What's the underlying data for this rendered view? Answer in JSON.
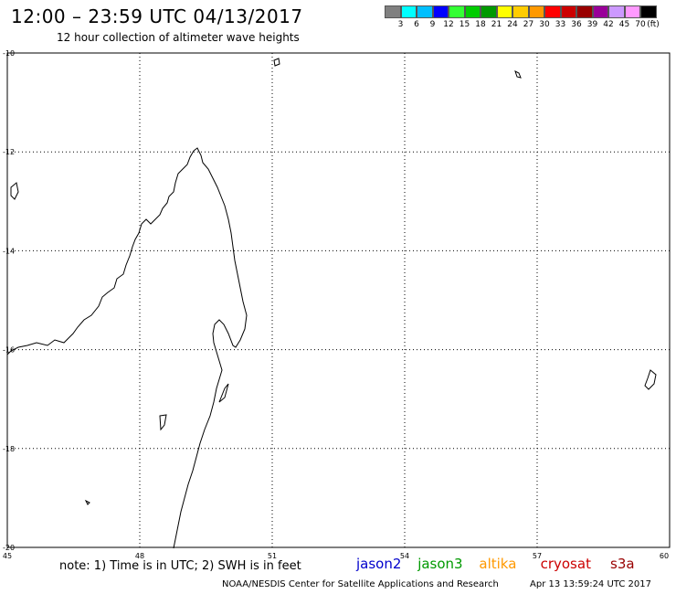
{
  "header": {
    "title": "12:00 – 23:59 UTC 04/13/2017",
    "subtitle": "12 hour collection of altimeter wave heights"
  },
  "colorbar": {
    "colors": [
      "#808080",
      "#00ffff",
      "#00bfff",
      "#0000ff",
      "#33ff33",
      "#00cc00",
      "#009900",
      "#ffff00",
      "#ffcc00",
      "#ff9900",
      "#ff0000",
      "#cc0000",
      "#990000",
      "#990099",
      "#cc99ff",
      "#ff99ff",
      "#000000"
    ],
    "labels": [
      "3",
      "6",
      "9",
      "12",
      "15",
      "18",
      "21",
      "24",
      "27",
      "30",
      "33",
      "36",
      "39",
      "42",
      "45",
      "70"
    ],
    "unit": "(ft)"
  },
  "axes": {
    "lon_ticks": [
      "45",
      "48",
      "51",
      "54",
      "57",
      "60"
    ],
    "lat_ticks": [
      "-10",
      "-12",
      "-14",
      "-16",
      "-18",
      "-20"
    ],
    "lon_range": [
      45,
      60
    ],
    "lat_range": [
      -20,
      -10
    ]
  },
  "footer": {
    "note": "note: 1) Time is in UTC; 2) SWH is in feet",
    "satellites": [
      {
        "name": "jason2",
        "color": "#0000cc"
      },
      {
        "name": "jason3",
        "color": "#009900"
      },
      {
        "name": "altika",
        "color": "#ff9900"
      },
      {
        "name": "cryosat",
        "color": "#cc0000"
      },
      {
        "name": "s3a",
        "color": "#990000"
      }
    ],
    "credit": "NOAA/NESDIS Center for Satellite Applications and Research",
    "timestamp": "Apr 13 13:59:24 UTC 2017"
  }
}
